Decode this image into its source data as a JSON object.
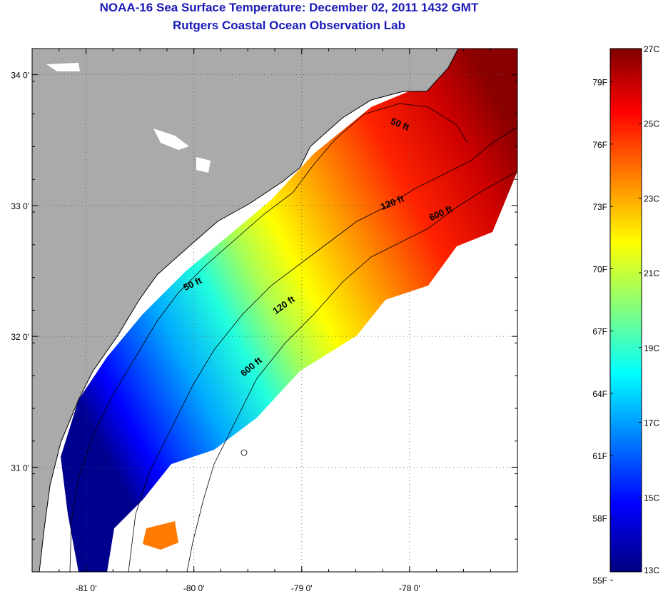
{
  "header": {
    "title": "NOAA-16 Sea Surface Temperature:  December 02, 2011 1432 GMT",
    "subtitle": "Rutgers Coastal Ocean Observation Lab"
  },
  "map": {
    "lon_range": [
      -81.5,
      -77.0
    ],
    "lat_range": [
      30.2,
      34.2
    ],
    "lat_ticks": [
      {
        "value": 31,
        "label": "31 0'"
      },
      {
        "value": 32,
        "label": "32 0'"
      },
      {
        "value": 33,
        "label": "33 0'"
      },
      {
        "value": 34,
        "label": "34 0'"
      }
    ],
    "lon_ticks": [
      {
        "value": -81,
        "label": "-81 0'"
      },
      {
        "value": -80,
        "label": "-80 0'"
      },
      {
        "value": -79,
        "label": "-79 0'"
      },
      {
        "value": -78,
        "label": "-78 0'"
      }
    ],
    "contour_labels": [
      {
        "text": "50 ft",
        "lon": -78.1,
        "lat": 33.6,
        "angle": 22
      },
      {
        "text": "120 ft",
        "lon": -78.15,
        "lat": 33.0,
        "angle": -22
      },
      {
        "text": "600 ft",
        "lon": -77.7,
        "lat": 32.92,
        "angle": -24
      },
      {
        "text": "50 ft",
        "lon": -80.0,
        "lat": 32.38,
        "angle": -26
      },
      {
        "text": "120 ft",
        "lon": -79.15,
        "lat": 32.22,
        "angle": -35
      },
      {
        "text": "600 ft",
        "lon": -79.45,
        "lat": 31.75,
        "angle": -40
      }
    ],
    "colors": {
      "land": "#aaaaaa",
      "nodata": "#ffffff",
      "contour": "#000000"
    }
  },
  "colorbar": {
    "f_labels": [
      "79F",
      "76F",
      "73F",
      "70F",
      "67F",
      "64F",
      "61F",
      "58F",
      "55F"
    ],
    "c_labels": [
      "27C",
      "25C",
      "23C",
      "21C",
      "19C",
      "17C",
      "15C",
      "13C"
    ],
    "range_c": [
      13,
      27
    ]
  }
}
